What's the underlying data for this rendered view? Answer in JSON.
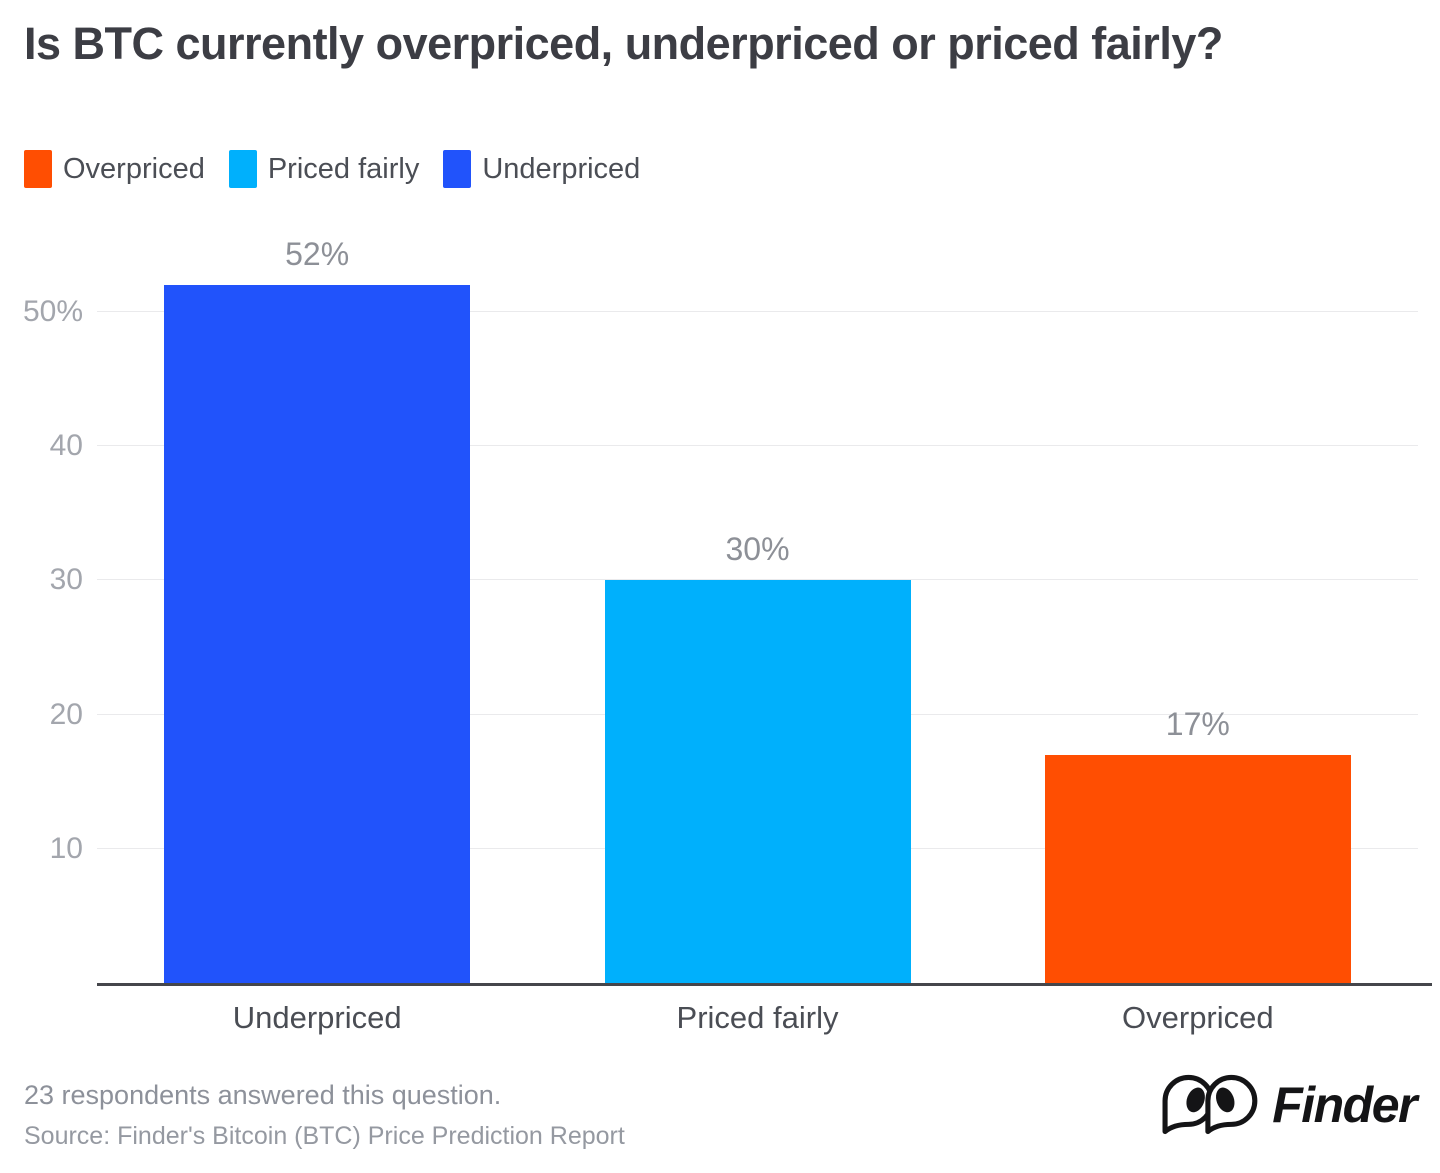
{
  "title": "Is BTC currently overpriced, underpriced or priced fairly?",
  "legend": [
    {
      "label": "Overpriced",
      "color": "#FF4E02",
      "icon": "orange-square-swatch"
    },
    {
      "label": "Priced fairly",
      "color": "#00B0FC",
      "icon": "cyan-square-swatch"
    },
    {
      "label": "Underpriced",
      "color": "#2153FB",
      "icon": "blue-square-swatch"
    }
  ],
  "chart_data": {
    "type": "bar",
    "title": "Is BTC currently overpriced, underpriced or priced fairly?",
    "categories": [
      "Underpriced",
      "Priced fairly",
      "Overpriced"
    ],
    "values": [
      52,
      30,
      17
    ],
    "value_labels": [
      "52%",
      "30%",
      "17%"
    ],
    "bar_colors": [
      "#2153FB",
      "#00B0FC",
      "#FF4E02"
    ],
    "xlabel": "",
    "ylabel": "",
    "ylim": [
      0,
      55
    ],
    "yticks": [
      10,
      20,
      30,
      40,
      50
    ],
    "ytick_labels": [
      "10",
      "20",
      "30",
      "40",
      "50%"
    ],
    "grid": true,
    "legend_position": "top-left"
  },
  "footer": {
    "respondents": "23 respondents answered this question.",
    "source": "Source: Finder's Bitcoin (BTC) Price Prediction Report",
    "brand": "Finder"
  }
}
